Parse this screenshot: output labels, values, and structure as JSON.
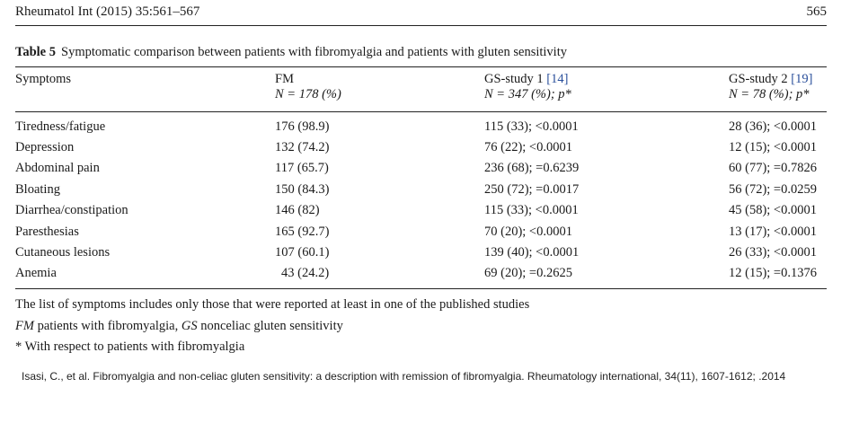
{
  "header": {
    "journal": "Rheumatol Int (2015) 35:561–567",
    "page_number": "565"
  },
  "table": {
    "label": "Table 5",
    "caption": "Symptomatic comparison between patients with fibromyalgia and patients with gluten sensitivity",
    "columns": [
      {
        "line1": "Symptoms",
        "line2": ""
      },
      {
        "line1": "FM",
        "line2": "N = 178 (%)"
      },
      {
        "line1_text": "GS-study 1 ",
        "line1_cite": "[14]",
        "line2": "N = 347 (%); p*"
      },
      {
        "line1_text": "GS-study 2 ",
        "line1_cite": "[19]",
        "line2": "N = 78 (%); p*"
      }
    ],
    "rows": [
      {
        "symptom": "Tiredness/fatigue",
        "fm": "176 (98.9)",
        "gs1": "115 (33); <0.0001",
        "gs2": "28 (36); <0.0001"
      },
      {
        "symptom": "Depression",
        "fm": "132 (74.2)",
        "gs1": "76 (22); <0.0001",
        "gs2": "12 (15); <0.0001"
      },
      {
        "symptom": "Abdominal pain",
        "fm": "117 (65.7)",
        "gs1": "236 (68); =0.6239",
        "gs2": "60 (77); =0.7826"
      },
      {
        "symptom": "Bloating",
        "fm": "150 (84.3)",
        "gs1": "250 (72); =0.0017",
        "gs2": "56 (72); =0.0259"
      },
      {
        "symptom": "Diarrhea/constipation",
        "fm": "146 (82)",
        "gs1": "115 (33); <0.0001",
        "gs2": "45 (58); <0.0001"
      },
      {
        "symptom": "Paresthesias",
        "fm": "165 (92.7)",
        "gs1": "70 (20); <0.0001",
        "gs2": "13 (17); <0.0001"
      },
      {
        "symptom": "Cutaneous lesions",
        "fm": "107 (60.1)",
        "gs1": "139 (40); <0.0001",
        "gs2": "26 (33); <0.0001"
      },
      {
        "symptom": "Anemia",
        "fm": "43 (24.2)",
        "gs1": "69 (20); =0.2625",
        "gs2": "12 (15); =0.1376"
      }
    ],
    "footnotes": {
      "note1": "The list of symptoms includes only those that were reported at least in one of the published studies",
      "abbr_fm": "FM",
      "abbr_fm_text": " patients with fibromyalgia, ",
      "abbr_gs": "GS",
      "abbr_gs_text": " nonceliac gluten sensitivity",
      "note3": "* With respect to patients with fibromyalgia"
    }
  },
  "source_citation": "Isasi, C., et al. Fibromyalgia and non-celiac gluten sensitivity: a description with remission of fibromyalgia. Rheumatology international, 34(11), 1607-1612; .2014"
}
